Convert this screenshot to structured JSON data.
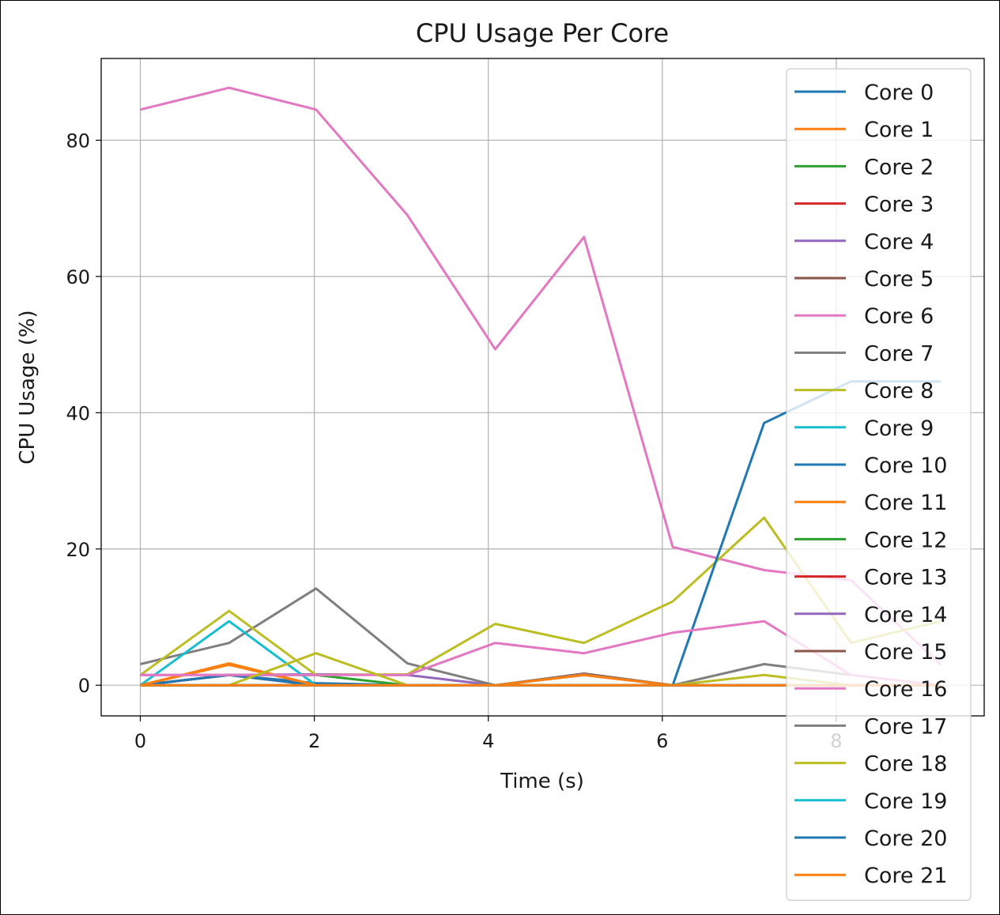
{
  "chart_data": {
    "type": "line",
    "title": "CPU Usage Per Core",
    "xlabel": "Time (s)",
    "ylabel": "CPU Usage (%)",
    "xlim": [
      -0.45,
      9.7
    ],
    "ylim": [
      -4.5,
      92
    ],
    "xticks": [
      0,
      2,
      4,
      6,
      8
    ],
    "yticks": [
      0,
      20,
      40,
      60,
      80
    ],
    "x": [
      0,
      1.02,
      2.02,
      3.07,
      4.08,
      5.1,
      6.12,
      7.17,
      8.17,
      9.2
    ],
    "grid": true,
    "legend_position": "upper-right",
    "series": [
      {
        "name": "Core 0",
        "color": "#1f77b4",
        "values": [
          0,
          1.5,
          0.3,
          0,
          0,
          0,
          0,
          0,
          0,
          0
        ]
      },
      {
        "name": "Core 1",
        "color": "#ff7f0e",
        "values": [
          0,
          3.0,
          0,
          0,
          0,
          0,
          0,
          0,
          0,
          0
        ]
      },
      {
        "name": "Core 2",
        "color": "#2ca02c",
        "values": [
          0,
          1.5,
          1.5,
          0,
          0,
          0,
          0,
          0,
          0,
          0
        ]
      },
      {
        "name": "Core 3",
        "color": "#d62728",
        "values": [
          0,
          1.5,
          0,
          0,
          0,
          1.5,
          0,
          0,
          0,
          0
        ]
      },
      {
        "name": "Core 4",
        "color": "#9467bd",
        "values": [
          1.5,
          1.5,
          1.6,
          1.5,
          0,
          0,
          0,
          0,
          0,
          0
        ]
      },
      {
        "name": "Core 5",
        "color": "#8c564b",
        "values": [
          0,
          1.5,
          0,
          0,
          0,
          1.7,
          0,
          0,
          0,
          0
        ]
      },
      {
        "name": "Core 6",
        "color": "#e377c2",
        "values": [
          84.5,
          87.7,
          84.5,
          69.0,
          49.3,
          65.8,
          20.3,
          16.9,
          15.4,
          3.0
        ]
      },
      {
        "name": "Core 7",
        "color": "#7f7f7f",
        "values": [
          3.1,
          6.2,
          14.2,
          3.2,
          0,
          1.6,
          0,
          3.1,
          1.5,
          0
        ]
      },
      {
        "name": "Core 8",
        "color": "#bcbd22",
        "values": [
          1.5,
          10.9,
          1.5,
          1.6,
          9.0,
          6.2,
          12.3,
          24.6,
          6.2,
          9.4
        ]
      },
      {
        "name": "Core 9",
        "color": "#17becf",
        "values": [
          0,
          9.4,
          0,
          0,
          0,
          0,
          0,
          0,
          0,
          0
        ]
      },
      {
        "name": "Core 10",
        "color": "#1f77b4",
        "values": [
          0,
          1.5,
          0,
          0,
          0,
          0,
          0,
          38.5,
          44.6,
          44.6
        ]
      },
      {
        "name": "Core 11",
        "color": "#ff7f0e",
        "values": [
          0,
          3.2,
          0,
          0,
          0,
          1.5,
          0,
          0,
          0,
          0
        ]
      },
      {
        "name": "Core 12",
        "color": "#2ca02c",
        "values": [
          0,
          0,
          0,
          0,
          0,
          0,
          0,
          0,
          0,
          0
        ]
      },
      {
        "name": "Core 13",
        "color": "#d62728",
        "values": [
          0,
          0,
          0,
          0,
          0,
          0,
          0,
          0,
          0,
          0
        ]
      },
      {
        "name": "Core 14",
        "color": "#9467bd",
        "values": [
          0,
          0,
          0,
          0,
          0,
          0,
          0,
          0,
          0,
          0
        ]
      },
      {
        "name": "Core 15",
        "color": "#8c564b",
        "values": [
          0,
          0,
          0,
          0,
          0,
          0,
          0,
          0,
          0,
          0
        ]
      },
      {
        "name": "Core 16",
        "color": "#e377c2",
        "values": [
          1.5,
          1.5,
          1.5,
          1.5,
          6.2,
          4.7,
          7.7,
          9.4,
          1.5,
          0
        ]
      },
      {
        "name": "Core 17",
        "color": "#7f7f7f",
        "values": [
          0,
          0,
          0,
          0,
          0,
          0,
          0,
          0,
          0,
          0
        ]
      },
      {
        "name": "Core 18",
        "color": "#bcbd22",
        "values": [
          0,
          0,
          4.7,
          0,
          0,
          0,
          0,
          1.5,
          0,
          0
        ]
      },
      {
        "name": "Core 19",
        "color": "#17becf",
        "values": [
          0,
          0,
          0,
          0,
          0,
          0,
          0,
          0,
          0,
          0
        ]
      },
      {
        "name": "Core 20",
        "color": "#1f77b4",
        "values": [
          0,
          0,
          0,
          0,
          0,
          0,
          0,
          0,
          0,
          0
        ]
      },
      {
        "name": "Core 21",
        "color": "#ff7f0e",
        "values": [
          0,
          0,
          0,
          0,
          0,
          0,
          0,
          0,
          0,
          0
        ]
      }
    ]
  }
}
